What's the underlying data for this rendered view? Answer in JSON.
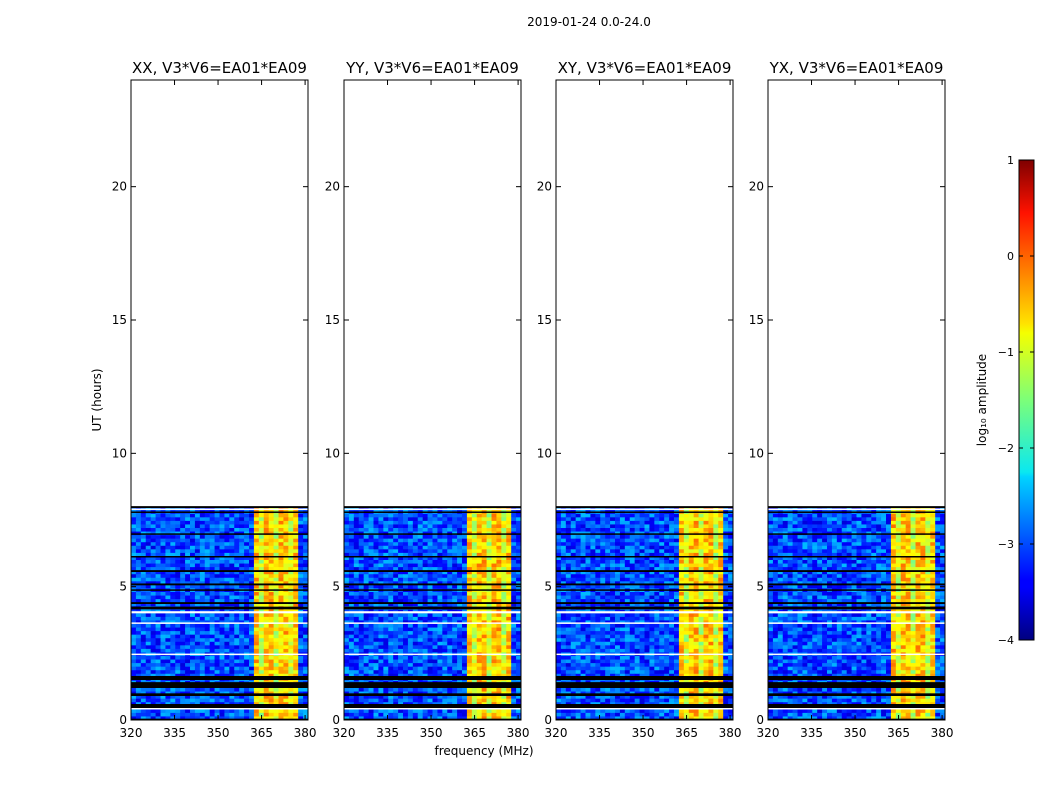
{
  "figure": {
    "suptitle": "2019-01-24 0.0-24.0",
    "ylabel": "UT (hours)",
    "xlabel": "frequency (MHz)"
  },
  "colorbar": {
    "label": "log₁₀ amplitude",
    "range": [
      -4,
      1
    ],
    "ticks": [
      "1",
      "0",
      "−1",
      "−2",
      "−3",
      "−4"
    ],
    "tick_values": [
      1,
      0,
      -1,
      -2,
      -3,
      -4
    ],
    "colormap": "jet"
  },
  "chart_data": {
    "type": "heatmap",
    "x_range": [
      320,
      381
    ],
    "y_range": [
      0,
      24
    ],
    "x_ticks": [
      "320",
      "335",
      "350",
      "365",
      "380"
    ],
    "x_tick_values": [
      320,
      335,
      350,
      365,
      380
    ],
    "y_ticks": [
      "0",
      "5",
      "10",
      "15",
      "20"
    ],
    "y_tick_values": [
      0,
      5,
      10,
      15,
      20
    ],
    "data_time_range_hours": [
      0,
      8
    ],
    "panels": [
      {
        "title": "XX, V3*V6=EA01*EA09"
      },
      {
        "title": "YY, V3*V6=EA01*EA09"
      },
      {
        "title": "XY, V3*V6=EA01*EA09"
      },
      {
        "title": "YX, V3*V6=EA01*EA09"
      }
    ],
    "rfi_band_mhz": [
      363,
      378
    ],
    "background_log_amplitude": -3.0,
    "rfi_log_amplitude": -0.6
  }
}
